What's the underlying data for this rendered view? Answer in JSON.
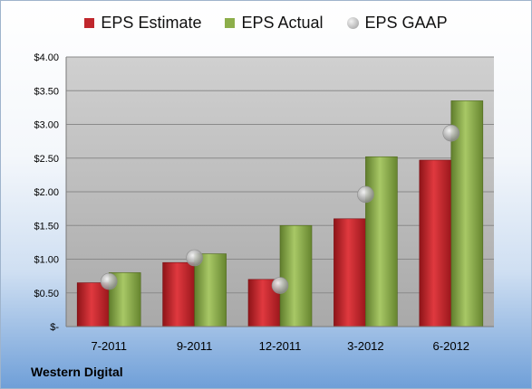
{
  "company": "Western Digital",
  "chart_data": {
    "type": "bar",
    "categories": [
      "7-2011",
      "9-2011",
      "12-2011",
      "3-2012",
      "6-2012"
    ],
    "series": [
      {
        "name": "EPS Estimate",
        "kind": "bar",
        "color": "#c0272d",
        "values": [
          0.65,
          0.95,
          0.7,
          1.6,
          2.47
        ]
      },
      {
        "name": "EPS Actual",
        "kind": "bar",
        "color": "#8cae4a",
        "values": [
          0.8,
          1.08,
          1.5,
          2.52,
          3.35
        ]
      },
      {
        "name": "EPS GAAP",
        "kind": "scatter",
        "color": "#a8a8a8",
        "values": [
          0.67,
          1.02,
          0.61,
          1.96,
          2.87
        ]
      }
    ],
    "y_ticks": [
      "$-",
      "$0.50",
      "$1.00",
      "$1.50",
      "$2.00",
      "$2.50",
      "$3.00",
      "$3.50",
      "$4.00"
    ],
    "ylim": [
      0,
      4
    ],
    "grid": true,
    "legend_position": "top"
  }
}
